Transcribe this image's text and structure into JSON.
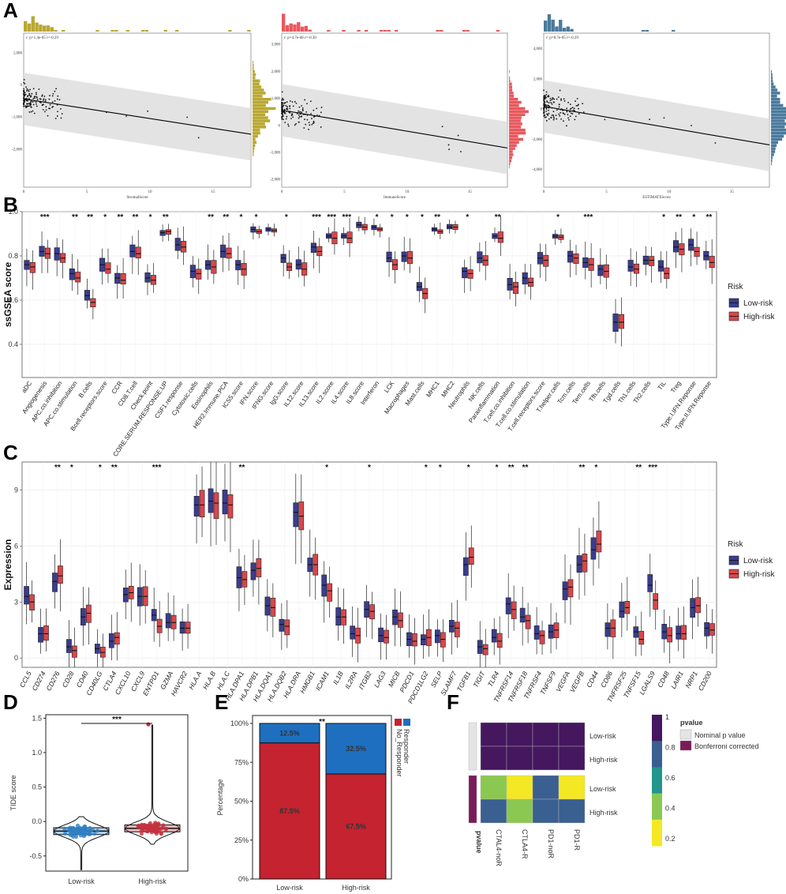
{
  "chart_data": {
    "panelA": {
      "label": "A",
      "plots": [
        {
          "annotation": "r: p=1.4e-05 r=-0.29",
          "xlabel": "StromalScore",
          "color": "#b9a832",
          "xticks": [
            "0",
            "5",
            "10",
            "15"
          ],
          "yticks": [
            "1,000",
            "0",
            "-1,000",
            "-2,000"
          ],
          "xlim": [
            0,
            18
          ],
          "ylim": [
            -3200,
            1600
          ],
          "yvals": [
            1000,
            0,
            -1000,
            -2000
          ],
          "line": [
            [
              0,
              -450
            ],
            [
              18,
              -1550
            ]
          ]
        },
        {
          "annotation": "r: p=4.7e-08 r=-0.30",
          "xlabel": "ImmuneScore",
          "color": "#e8585d",
          "xticks": [
            "0",
            "5",
            "10",
            "15"
          ],
          "yticks": [
            "3,000",
            "2,000",
            "1,000",
            "0",
            "-1,000",
            "-2,000"
          ],
          "xlim": [
            0,
            18
          ],
          "ylim": [
            -2300,
            3400
          ],
          "yvals": [
            3000,
            2000,
            1000,
            0,
            -1000,
            -2000
          ],
          "line": [
            [
              0,
              550
            ],
            [
              18,
              -850
            ]
          ]
        },
        {
          "annotation": "r: p=8.7e-05 r=-0.29",
          "xlabel": "ESTIMATEScore",
          "color": "#4a7a9c",
          "xticks": [
            "0",
            "5",
            "10",
            "15"
          ],
          "yticks": [
            "4,000",
            "2,000",
            "0",
            "-2,000",
            "-4,000"
          ],
          "xlim": [
            0,
            18
          ],
          "ylim": [
            -5200,
            5000
          ],
          "yvals": [
            4000,
            2000,
            0,
            -2000,
            -4000
          ],
          "line": [
            [
              0,
              150
            ],
            [
              18,
              -2400
            ]
          ]
        }
      ]
    },
    "panelB": {
      "label": "B",
      "type": "boxplot",
      "ylabel": "ssGSEA score",
      "ylim": [
        0.25,
        1.0
      ],
      "yticks": [
        "0.4",
        "0.6",
        "0.8",
        "1.0"
      ],
      "legend_title": "Risk",
      "legend": [
        "Low-risk",
        "High-risk"
      ],
      "colors": [
        "#3a3d8f",
        "#d8474b"
      ],
      "categories": [
        "aDC",
        "Angiogenesis",
        "APC.co.inhibition",
        "APC.co.stimulation",
        "B.cells",
        "Bcell.receptors.score",
        "CCR",
        "CD8.T.cell",
        "Check.point",
        "CORE.SERUM.RESPONSE.UP",
        "CSF1.response",
        "Cytotoxic.cells",
        "Eosinophils",
        "HER2.Immune.PCA",
        "ICS5.score",
        "IFN.score",
        "IFNG.score",
        "IgG.score",
        "IL12.score",
        "IL13.score",
        "IL2.score",
        "IL4.score",
        "IL8.score",
        "Interferon",
        "LCK",
        "Macrophages",
        "Mast.cells",
        "MHC1",
        "MHC2",
        "Neutrophils",
        "NK.cells",
        "Parainflammation",
        "T.cell.co.inhibition",
        "T.cell.co.stimulation",
        "T.cell.receptors.score",
        "T.helper.cells",
        "Tcm.cells",
        "Tem.cells",
        "Tfh.cells",
        "Tgd.cells",
        "Th1.cells",
        "Th2.cells",
        "TIL",
        "Treg",
        "Type.I.IFN.Reponse",
        "Type.II.IFN.Reponse"
      ],
      "sig": [
        "",
        "***",
        "",
        "**",
        "**",
        "*",
        "**",
        "**",
        "*",
        "**",
        "",
        "",
        "**",
        "**",
        "*",
        "*",
        "",
        "*",
        "",
        "***",
        "***",
        "***",
        "",
        "*",
        "*",
        "*",
        "*",
        "**",
        "",
        "*",
        "",
        "**",
        "",
        "",
        "",
        "*",
        "",
        "***",
        "",
        "",
        "",
        "",
        "*",
        "**",
        "*",
        "**"
      ],
      "low_medians": [
        0.76,
        0.82,
        0.81,
        0.72,
        0.62,
        0.76,
        0.7,
        0.82,
        0.7,
        0.905,
        0.85,
        0.73,
        0.76,
        0.82,
        0.76,
        0.92,
        0.92,
        0.79,
        0.76,
        0.84,
        0.89,
        0.89,
        0.94,
        0.93,
        0.79,
        0.8,
        0.66,
        0.92,
        0.93,
        0.73,
        0.79,
        0.89,
        0.67,
        0.7,
        0.79,
        0.89,
        0.8,
        0.77,
        0.74,
        0.5,
        0.75,
        0.78,
        0.75,
        0.84,
        0.85,
        0.8
      ],
      "high_medians": [
        0.75,
        0.81,
        0.79,
        0.7,
        0.59,
        0.74,
        0.69,
        0.81,
        0.69,
        0.91,
        0.84,
        0.72,
        0.75,
        0.81,
        0.74,
        0.91,
        0.915,
        0.75,
        0.74,
        0.82,
        0.88,
        0.88,
        0.93,
        0.92,
        0.76,
        0.79,
        0.63,
        0.91,
        0.93,
        0.72,
        0.78,
        0.88,
        0.66,
        0.68,
        0.78,
        0.885,
        0.79,
        0.76,
        0.73,
        0.5,
        0.74,
        0.78,
        0.72,
        0.83,
        0.82,
        0.77
      ]
    },
    "panelC": {
      "label": "C",
      "type": "boxplot",
      "ylabel": "Expression",
      "ylim": [
        -0.5,
        10.5
      ],
      "yticks": [
        "0",
        "3",
        "6",
        "9"
      ],
      "legend_title": "Risk",
      "legend": [
        "Low-risk",
        "High-risk"
      ],
      "colors": [
        "#3a3d8f",
        "#d8474b"
      ],
      "categories": [
        "CCL5",
        "CD274",
        "CD276",
        "CD28",
        "CD40",
        "CD40LG",
        "CTLA4",
        "CXCL10",
        "CXCL9",
        "ENTPD1",
        "GZMA",
        "HAVCR2",
        "HLA.A",
        "HLA.B",
        "HLA.C",
        "HLA.DPA1",
        "HLA.DPB1",
        "HLA.DQA1",
        "HLA.DQB2",
        "HLA.DRA",
        "HMGB1",
        "ICAM1",
        "IL1B",
        "IL2RA",
        "ITGB2",
        "LAG3",
        "MICB",
        "PDCD1",
        "PDCD1LG2",
        "SELP",
        "SLAMF7",
        "TGFB1",
        "TIGIT",
        "TLR4",
        "TNFRSF14",
        "TNFRSF18",
        "TNFRSF4",
        "TNFSF9",
        "VEGFA",
        "VEGFB",
        "CD44",
        "CD86",
        "TNFRSF25",
        "TNFSF15",
        "LGALS9",
        "CD48",
        "LAIR1",
        "NRP1",
        "CD200"
      ],
      "sig": [
        "",
        "",
        "**",
        "*",
        "",
        "*",
        "**",
        "",
        "",
        "***",
        "",
        "",
        "",
        "",
        "",
        "**",
        "",
        "",
        "",
        "",
        "",
        "*",
        "",
        "",
        "*",
        "",
        "",
        "",
        "*",
        "*",
        "",
        "*",
        "",
        "*",
        "**",
        "**",
        "",
        "",
        "",
        "**",
        "*",
        "",
        "",
        "**",
        "***",
        "",
        "",
        "",
        ""
      ],
      "low_medians": [
        3.3,
        1.3,
        4.1,
        0.6,
        2.2,
        0.5,
        0.9,
        3.4,
        3.3,
        2.3,
        1.9,
        1.6,
        8.2,
        8.4,
        8.3,
        4.3,
        4.7,
        2.8,
        1.8,
        7.8,
        5.0,
        3.9,
        2.2,
        1.3,
        2.6,
        1.2,
        2.2,
        1.0,
        1.0,
        1.2,
        1.7,
        5.0,
        0.6,
        1.1,
        2.9,
        2.2,
        1.3,
        1.4,
        3.7,
        5.0,
        5.8,
        1.6,
        2.5,
        1.4,
        3.9,
        1.4,
        1.3,
        2.7,
        1.6
      ],
      "high_medians": [
        3.0,
        1.3,
        4.4,
        0.4,
        2.4,
        0.3,
        1.1,
        3.5,
        3.3,
        1.7,
        1.9,
        1.6,
        8.2,
        8.3,
        8.2,
        4.2,
        4.8,
        2.7,
        1.7,
        7.6,
        5.0,
        3.6,
        2.2,
        1.2,
        2.5,
        1.1,
        2.0,
        0.9,
        1.1,
        1.0,
        1.6,
        5.4,
        0.5,
        0.9,
        2.6,
        2.0,
        1.2,
        1.5,
        3.8,
        5.2,
        6.1,
        1.6,
        2.7,
        1.0,
        3.1,
        1.2,
        1.3,
        2.8,
        1.5
      ]
    },
    "panelD": {
      "label": "D",
      "type": "violin",
      "ylabel": "TIDE score",
      "categories": [
        "Low-risk",
        "High-risk"
      ],
      "yticks": [
        "-0.5",
        "0.0",
        "0.5",
        "1.0",
        "1.5"
      ],
      "ylim": [
        -0.72,
        1.55
      ],
      "medians": [
        -0.14,
        -0.1
      ],
      "colors": [
        "#2f80c3",
        "#c4323f"
      ],
      "sig": "***"
    },
    "panelE": {
      "label": "E",
      "type": "stacked_bar",
      "ylabel": "Percentage",
      "categories": [
        "Low-risk",
        "High-risk"
      ],
      "yticks": [
        "0%",
        "25%",
        "50%",
        "75%",
        "100%"
      ],
      "series": [
        {
          "name": "Responder",
          "values": [
            87.5,
            67.5
          ],
          "labels": [
            "87.5%",
            "67.5%"
          ],
          "color": "#c4232f"
        },
        {
          "name": "No_Responder",
          "values": [
            12.5,
            32.5
          ],
          "labels": [
            "12.5%",
            "32.5%"
          ],
          "color": "#1e6fc0"
        }
      ],
      "sig": "**"
    },
    "panelF": {
      "label": "F",
      "type": "heatmap",
      "columns": [
        "CTAL4-noR",
        "CTLA4-R",
        "PD1-noR",
        "PD1-R"
      ],
      "rows": [
        "Low-risk",
        "High-risk",
        "Low-risk",
        "High-risk"
      ],
      "row_group_label": "pvalue",
      "values": [
        [
          1,
          1,
          1,
          1
        ],
        [
          1,
          1,
          1,
          1
        ],
        [
          0.45,
          0.2,
          0.8,
          0.2
        ],
        [
          0.8,
          0.45,
          0.8,
          0.8
        ]
      ],
      "legend_title": "pvalue",
      "legend_ticks": [
        "1",
        "0.8",
        "0.6",
        "0.4",
        "0.2"
      ],
      "group_legend": [
        "Nominal p value",
        "Bonferroni corrected"
      ],
      "group_colors": [
        "#e4e4e4",
        "#7a1a5b"
      ]
    }
  }
}
